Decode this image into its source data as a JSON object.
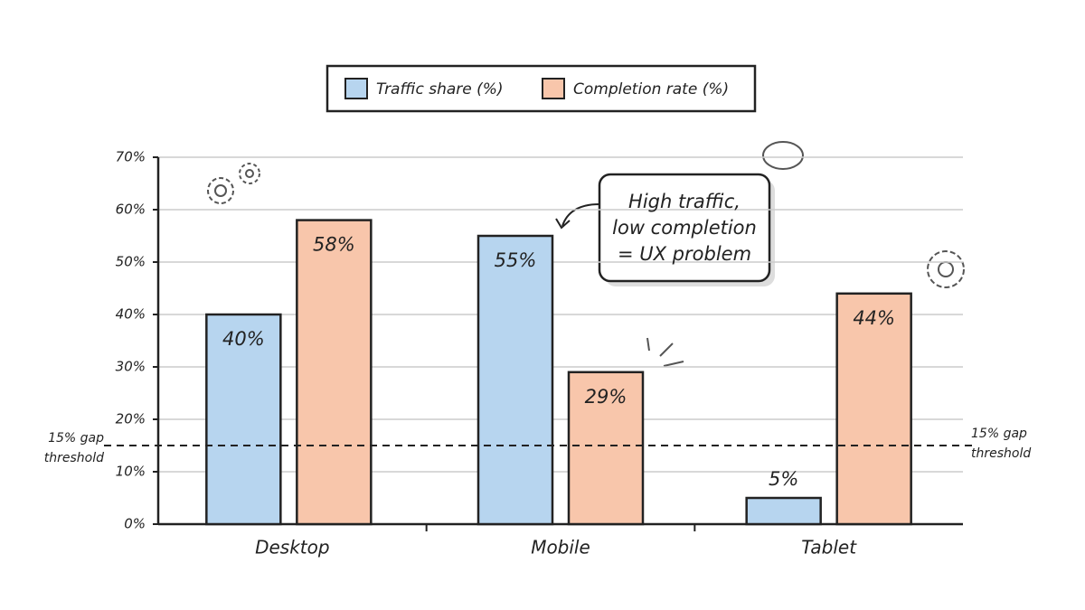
{
  "chart_data": {
    "type": "bar",
    "categories": [
      "Desktop",
      "Mobile",
      "Tablet"
    ],
    "series": [
      {
        "name": "Traffic share (%)",
        "color": "#b7d5ef",
        "values": [
          40,
          55,
          5
        ],
        "value_labels": [
          "40%",
          "55%",
          "5%"
        ]
      },
      {
        "name": "Completion rate (%)",
        "color": "#f8c6ab",
        "values": [
          58,
          29,
          44
        ],
        "value_labels": [
          "58%",
          "29%",
          "44%"
        ]
      }
    ],
    "ylim": [
      0,
      70
    ],
    "yticks": [
      {
        "value": 0,
        "label": "0%"
      },
      {
        "value": 10,
        "label": "10%"
      },
      {
        "value": 20,
        "label": "20%"
      },
      {
        "value": 30,
        "label": "30%"
      },
      {
        "value": 40,
        "label": "40%"
      },
      {
        "value": 50,
        "label": "50%"
      },
      {
        "value": 60,
        "label": "60%"
      },
      {
        "value": 70,
        "label": "70%"
      }
    ],
    "grid": true,
    "legend": "top",
    "threshold": {
      "value": 15,
      "label": [
        "15% gap",
        "threshold"
      ]
    },
    "annotation": [
      "High traffic,",
      "low completion",
      "= UX problem"
    ]
  }
}
